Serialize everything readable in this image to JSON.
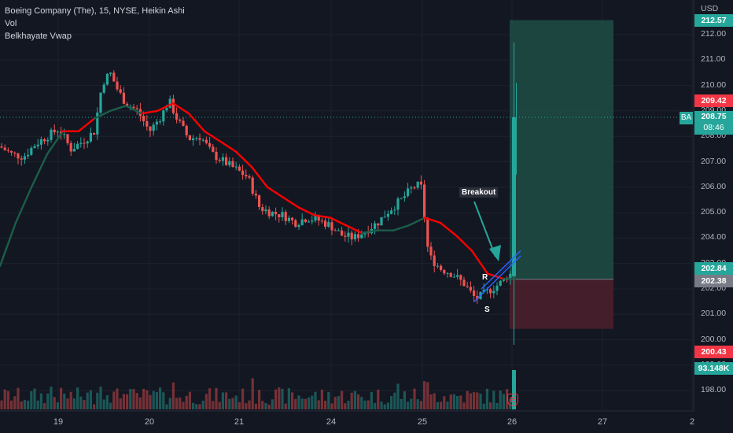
{
  "legend": {
    "symbol_line": "Boeing Company (The), 15, NYSE, Heikin Ashi",
    "vol": "Vol",
    "indicator": "Belkhayate Vwap"
  },
  "currency": "USD",
  "y_ticks": [
    "212.00",
    "211.00",
    "210.00",
    "209.00",
    "208.00",
    "207.00",
    "206.00",
    "205.00",
    "204.00",
    "203.00",
    "202.00",
    "201.00",
    "200.00",
    "199.00",
    "198.00"
  ],
  "x_ticks": [
    "19",
    "20",
    "21",
    "24",
    "25",
    "26",
    "27",
    "2"
  ],
  "price_badges": {
    "top": "212.57",
    "stop_top": "209.42",
    "symbol": "BA",
    "last_price": "208.75",
    "countdown": "08:46",
    "entry_top": "202.84",
    "entry": "202.38",
    "stop": "200.43",
    "volume": "93.148K"
  },
  "annotations": {
    "breakout": "Breakout",
    "resistance": "R",
    "support": "S",
    "earnings": "E"
  },
  "colors": {
    "background": "#131722",
    "bull": "#26a69a",
    "bear": "#ef5350",
    "vwap_red": "#ff0000",
    "vwap_green": "#1b5e4a",
    "profit_zone": "#1e4d45",
    "loss_zone": "#4a1f2b",
    "channel": "#2962ff"
  },
  "chart_data": {
    "type": "candlestick",
    "title": "Boeing Company (The), 15, NYSE, Heikin Ashi",
    "ylim": [
      197.5,
      212.6
    ],
    "x_labels": [
      "19",
      "20",
      "21",
      "24",
      "25",
      "26",
      "27",
      "2"
    ],
    "last_price": 208.75,
    "trade": {
      "entry": 202.38,
      "target": 212.57,
      "stop": 200.43
    },
    "vwap_points": [
      [
        0,
        202.9
      ],
      [
        20,
        204.6
      ],
      [
        40,
        206.0
      ],
      [
        60,
        207.3
      ],
      [
        80,
        208.2
      ],
      [
        100,
        208.2
      ],
      [
        120,
        208.7
      ],
      [
        140,
        209.0
      ],
      [
        160,
        209.2
      ],
      [
        180,
        208.9
      ],
      [
        200,
        209.0
      ],
      [
        220,
        209.3
      ],
      [
        240,
        208.9
      ],
      [
        260,
        208.2
      ],
      [
        280,
        207.8
      ],
      [
        300,
        207.4
      ],
      [
        320,
        206.8
      ],
      [
        340,
        206.0
      ],
      [
        360,
        205.6
      ],
      [
        380,
        205.2
      ],
      [
        400,
        204.9
      ],
      [
        420,
        204.8
      ],
      [
        440,
        204.5
      ],
      [
        460,
        204.2
      ],
      [
        480,
        204.3
      ],
      [
        500,
        204.3
      ],
      [
        520,
        204.5
      ],
      [
        540,
        204.8
      ],
      [
        560,
        204.6
      ],
      [
        580,
        204.1
      ],
      [
        600,
        203.5
      ],
      [
        620,
        202.6
      ],
      [
        640,
        202.4
      ],
      [
        655,
        202.4
      ]
    ],
    "anchors": [
      [
        0,
        207.6
      ],
      [
        15,
        207.3
      ],
      [
        30,
        207.2
      ],
      [
        45,
        207.7
      ],
      [
        60,
        208.0
      ],
      [
        75,
        208.3
      ],
      [
        90,
        207.5
      ],
      [
        105,
        207.8
      ],
      [
        120,
        208.2
      ],
      [
        130,
        210.1
      ],
      [
        140,
        210.5
      ],
      [
        150,
        209.8
      ],
      [
        160,
        209.3
      ],
      [
        175,
        209.0
      ],
      [
        190,
        208.2
      ],
      [
        205,
        208.8
      ],
      [
        215,
        209.4
      ],
      [
        225,
        208.7
      ],
      [
        240,
        207.9
      ],
      [
        255,
        208.0
      ],
      [
        270,
        207.3
      ],
      [
        285,
        207.0
      ],
      [
        300,
        206.7
      ],
      [
        315,
        206.4
      ],
      [
        330,
        205.2
      ],
      [
        345,
        205.0
      ],
      [
        360,
        204.9
      ],
      [
        375,
        204.6
      ],
      [
        390,
        204.8
      ],
      [
        405,
        204.7
      ],
      [
        420,
        204.5
      ],
      [
        435,
        204.1
      ],
      [
        450,
        204.0
      ],
      [
        465,
        204.3
      ],
      [
        480,
        204.6
      ],
      [
        495,
        205.1
      ],
      [
        510,
        205.5
      ],
      [
        525,
        206.0
      ],
      [
        535,
        206.1
      ],
      [
        545,
        203.3
      ],
      [
        560,
        202.8
      ],
      [
        575,
        202.6
      ],
      [
        590,
        202.2
      ],
      [
        605,
        201.6
      ],
      [
        620,
        201.9
      ],
      [
        635,
        202.2
      ],
      [
        645,
        202.5
      ],
      [
        650,
        202.6
      ],
      [
        653,
        206.4
      ],
      [
        656,
        208.75
      ]
    ]
  }
}
